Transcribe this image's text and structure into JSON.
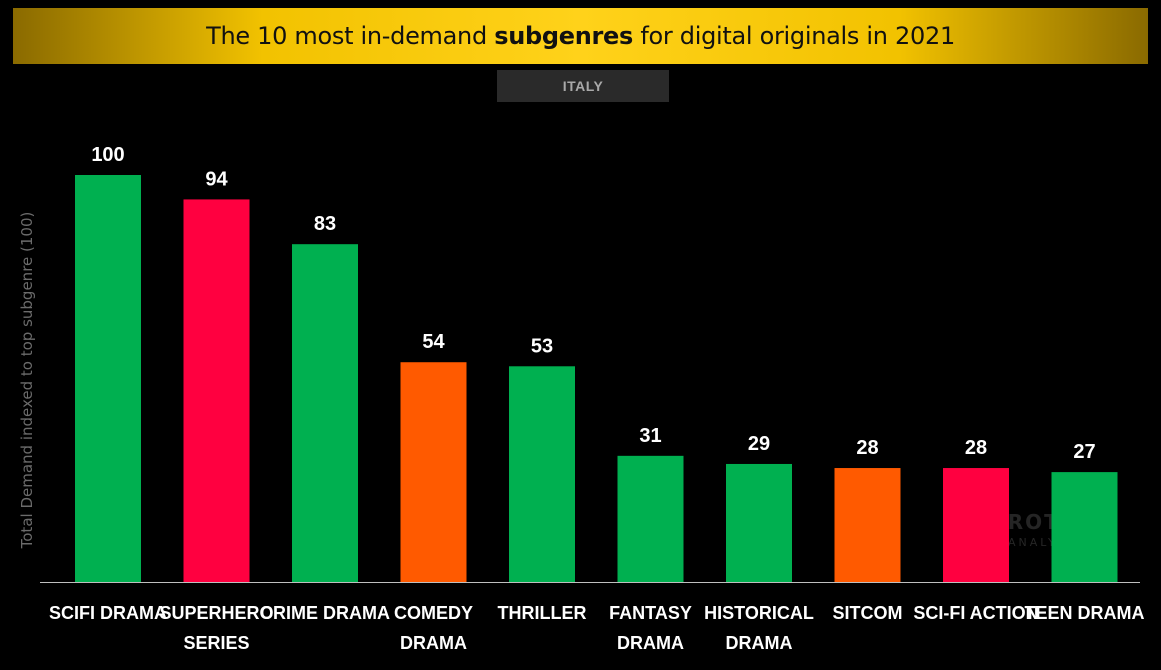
{
  "header": {
    "title_before": "The 10 most in-demand ",
    "title_bold": "subgenres",
    "title_after": " for digital originals in 2021",
    "subtitle": "ITALY"
  },
  "watermark": {
    "main": "PARROT",
    "sub": "ANALYTICS"
  },
  "chart_data": {
    "type": "bar",
    "title": "The 10 most in-demand subgenres for digital originals in 2021",
    "subtitle": "ITALY",
    "xlabel": "",
    "ylabel": "Total Demand indexed to top subgenre (100)",
    "ylim": [
      0,
      100
    ],
    "grid": false,
    "legend": "none",
    "categories": [
      "SCIFI DRAMA",
      "SUPERHERO SERIES",
      "CRIME DRAMA",
      "COMEDY DRAMA",
      "THRILLER",
      "FANTASY DRAMA",
      "HISTORICAL DRAMA",
      "SITCOM",
      "SCI-FI ACTION",
      "TEEN DRAMA"
    ],
    "category_lines": [
      [
        "SCIFI DRAMA"
      ],
      [
        "SUPERHERO",
        "SERIES"
      ],
      [
        "CRIME DRAMA"
      ],
      [
        "COMEDY",
        "DRAMA"
      ],
      [
        "THRILLER"
      ],
      [
        "FANTASY",
        "DRAMA"
      ],
      [
        "HISTORICAL",
        "DRAMA"
      ],
      [
        "SITCOM"
      ],
      [
        "SCI-FI ACTION"
      ],
      [
        "TEEN DRAMA"
      ]
    ],
    "values": [
      100,
      94,
      83,
      54,
      53,
      31,
      29,
      28,
      28,
      27
    ],
    "colors": [
      "#00b050",
      "#ff0040",
      "#00b050",
      "#ff5a00",
      "#00b050",
      "#00b050",
      "#00b050",
      "#ff5a00",
      "#ff0040",
      "#00b050"
    ]
  }
}
